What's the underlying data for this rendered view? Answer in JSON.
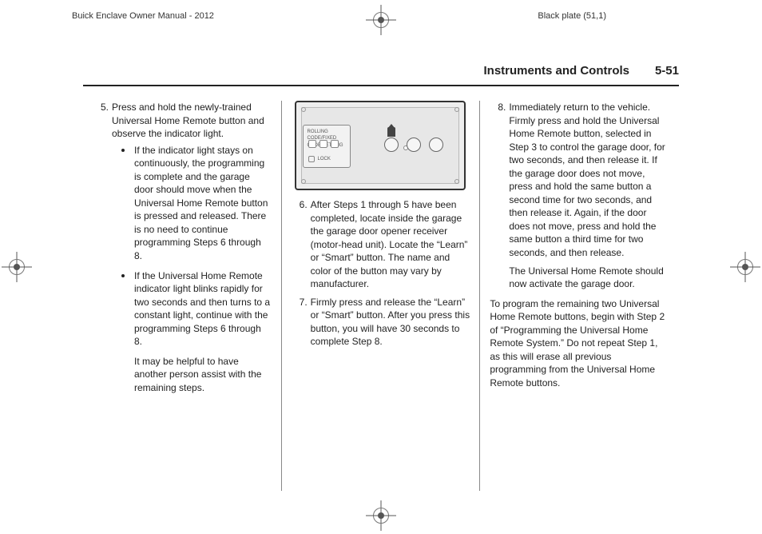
{
  "header": {
    "left": "Buick Enclave Owner Manual - 2012",
    "right": "Black plate (51,1)"
  },
  "section": {
    "title": "Instruments and Controls",
    "page": "5-51"
  },
  "col1": {
    "step5": {
      "num": "5.",
      "text": "Press and hold the newly-trained Universal Home Remote button and observe the indicator light.",
      "bullet1": "If the indicator light stays on continuously, the programming is complete and the garage door should move when the Universal Home Remote button is pressed and released. There is no need to continue programming Steps 6 through 8.",
      "bullet2": "If the Universal Home Remote indicator light blinks rapidly for two seconds and then turns to a constant light, continue with the programming Steps 6 through 8.",
      "bullet2_sub": "It may be helpful to have another person assist with the remaining steps."
    }
  },
  "col2": {
    "illus_panel_label": "ROLLING CODE/FIXED CODE SETTING",
    "step6": {
      "num": "6.",
      "text": "After Steps 1 through 5 have been completed, locate inside the garage the garage door opener receiver (motor-head unit). Locate the “Learn” or “Smart” button. The name and color of the button may vary by manufacturer."
    },
    "step7": {
      "num": "7.",
      "text": "Firmly press and release the “Learn” or “Smart” button. After you press this button, you will have 30 seconds to complete Step 8."
    }
  },
  "col3": {
    "step8": {
      "num": "8.",
      "text": "Immediately return to the vehicle. Firmly press and hold the Universal Home Remote button, selected in Step 3 to control the garage door, for two seconds, and then release it. If the garage door does not move, press and hold the same button a second time for two seconds, and then release it. Again, if the door does not move, press and hold the same button a third time for two seconds, and then release.",
      "after": "The Universal Home Remote should now activate the garage door."
    },
    "tail": "To program the remaining two Universal Home Remote buttons, begin with Step 2 of “Programming the Universal Home Remote System.” Do not repeat Step 1, as this will erase all previous programming from the Universal Home Remote buttons."
  }
}
